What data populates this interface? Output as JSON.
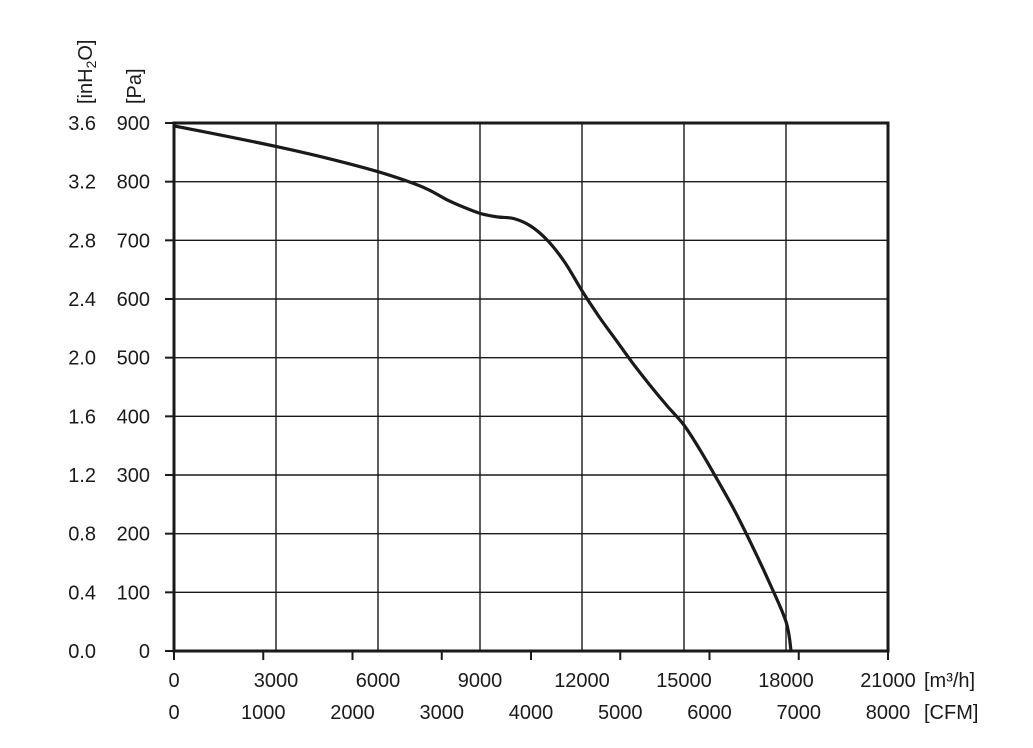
{
  "chart_data": {
    "type": "line",
    "title": "",
    "x_primary": {
      "unit_label": "[m³/h]",
      "range": [
        0,
        21000
      ],
      "gridlines": [
        0,
        3000,
        6000,
        9000,
        12000,
        15000,
        18000,
        21000
      ],
      "tick_labels": [
        "0",
        "3000",
        "6000",
        "9000",
        "12000",
        "15000",
        "18000",
        "21000"
      ]
    },
    "x_secondary": {
      "unit_label": "[CFM]",
      "ticks": [
        0,
        1000,
        2000,
        3000,
        4000,
        5000,
        6000,
        7000,
        8000
      ],
      "tick_labels": [
        "0",
        "1000",
        "2000",
        "3000",
        "4000",
        "5000",
        "6000",
        "7000",
        "8000"
      ]
    },
    "y_primary": {
      "unit_label": "[Pa]",
      "range": [
        0,
        900
      ],
      "ticks": [
        0,
        100,
        200,
        300,
        400,
        500,
        600,
        700,
        800,
        900
      ],
      "tick_labels": [
        "0",
        "100",
        "200",
        "300",
        "400",
        "500",
        "600",
        "700",
        "800",
        "900"
      ]
    },
    "y_secondary": {
      "unit_label": "[inH2O]",
      "tick_labels": [
        "0.0",
        "0.4",
        "0.8",
        "1.2",
        "1.6",
        "2.0",
        "2.4",
        "2.8",
        "3.2",
        "3.6"
      ]
    },
    "grid": true,
    "legend": "none",
    "series": [
      {
        "color": "#1a1a1a",
        "x": [
          0,
          1500,
          3000,
          4500,
          6000,
          7000,
          7500,
          8000,
          8500,
          9000,
          9500,
          10000,
          10500,
          11000,
          11500,
          12000,
          12500,
          13000,
          13500,
          14000,
          14500,
          15000,
          15500,
          16000,
          16500,
          17000,
          17500,
          18000,
          18150
        ],
        "y": [
          895,
          878,
          860,
          840,
          817,
          798,
          786,
          770,
          757,
          746,
          740,
          737,
          724,
          699,
          662,
          614,
          570,
          530,
          490,
          453,
          418,
          385,
          340,
          290,
          238,
          180,
          118,
          50,
          0
        ]
      }
    ]
  }
}
